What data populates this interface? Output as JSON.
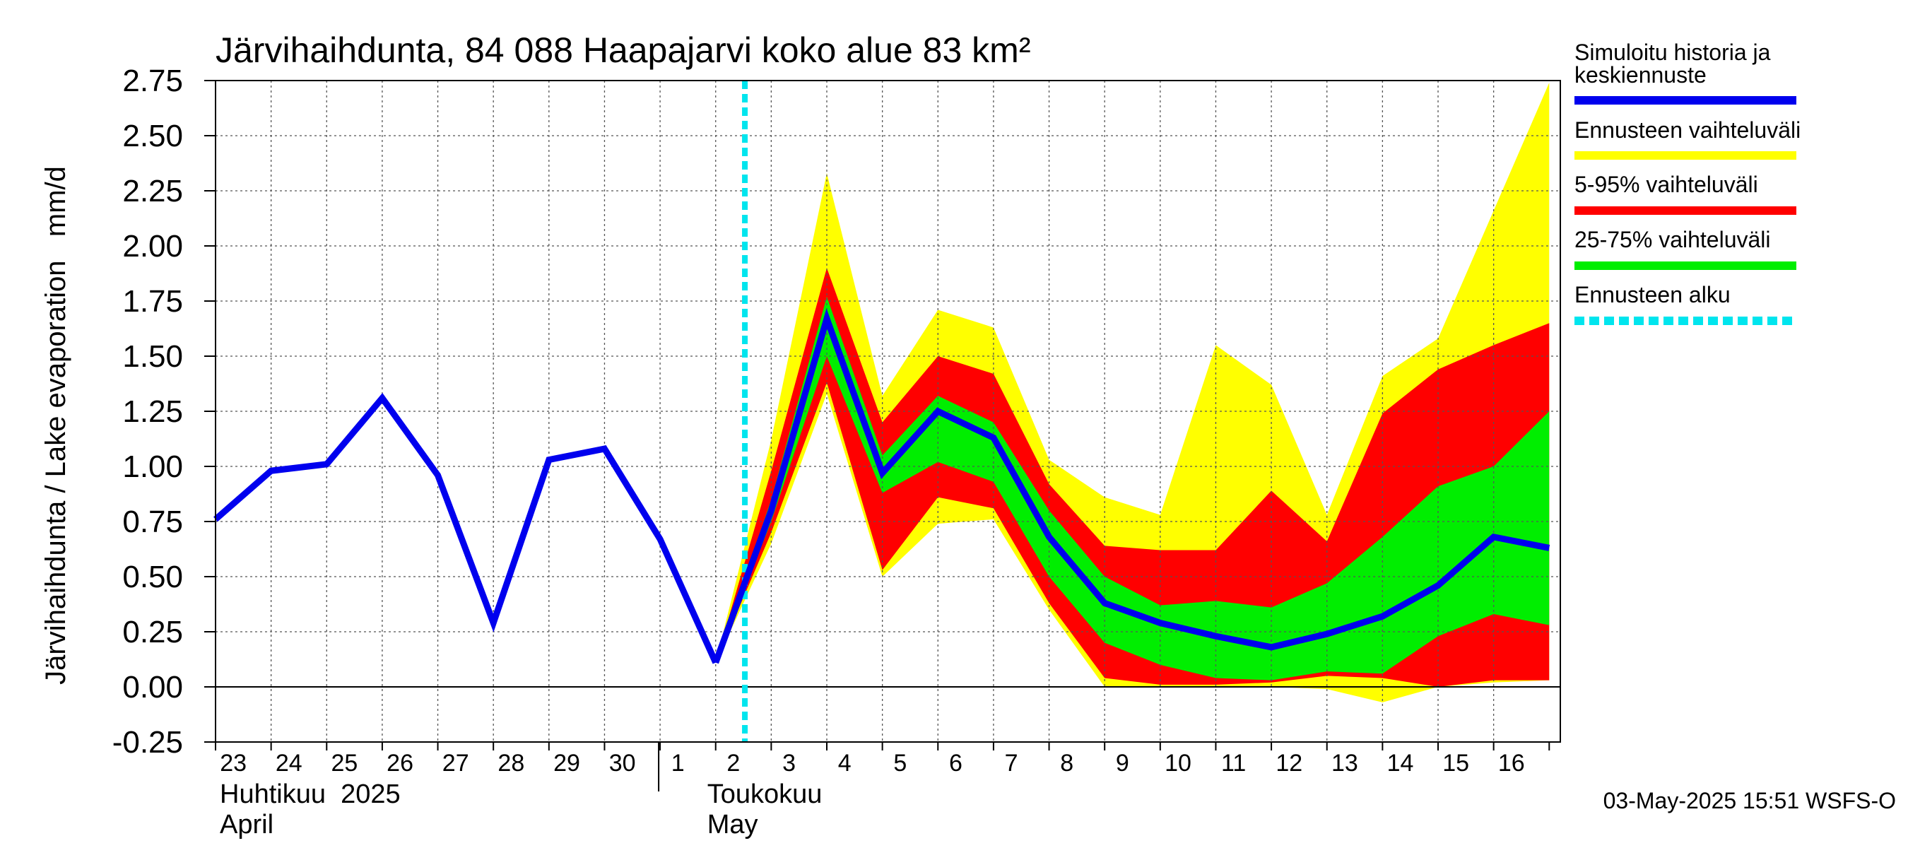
{
  "chart_data": {
    "type": "area",
    "title": "Järvihaihdunta, 84 088 Haapajarvi koko alue 83 km²",
    "ylabel": "Järvihaihdunta / Lake evaporation   mm/d",
    "ylim": [
      -0.25,
      2.75
    ],
    "yticks": [
      "-0.25",
      "0.00",
      "0.25",
      "0.50",
      "0.75",
      "1.00",
      "1.25",
      "1.50",
      "1.75",
      "2.00",
      "2.25",
      "2.50",
      "2.75"
    ],
    "x_day_labels": [
      "23",
      "24",
      "25",
      "26",
      "27",
      "28",
      "29",
      "30",
      "1",
      "2",
      "3",
      "4",
      "5",
      "6",
      "7",
      "8",
      "9",
      "10",
      "11",
      "12",
      "13",
      "14",
      "15",
      "16"
    ],
    "month_labels": [
      {
        "fi": "Huhtikuu  2025",
        "en": "April"
      },
      {
        "fi": "Toukokuu",
        "en": "May"
      }
    ],
    "forecast_start_day_index": 10,
    "history": {
      "days": [
        0,
        1,
        2,
        3,
        4,
        5,
        6,
        7,
        8,
        9
      ],
      "values": [
        0.76,
        0.98,
        1.01,
        1.31,
        0.96,
        0.29,
        1.03,
        1.08,
        0.67,
        0.11
      ]
    },
    "forecast_days": [
      9,
      10,
      11,
      12,
      13,
      14,
      15,
      16,
      17,
      18,
      19,
      20,
      21,
      22,
      23,
      24
    ],
    "bands": {
      "range_min": [
        0.11,
        0.65,
        1.33,
        0.5,
        0.74,
        0.76,
        0.35,
        0.0,
        0.0,
        0.0,
        0.0,
        -0.01,
        -0.07,
        0.0,
        0.02,
        0.03
      ],
      "p5": [
        0.11,
        0.7,
        1.38,
        0.53,
        0.86,
        0.81,
        0.38,
        0.04,
        0.01,
        0.01,
        0.02,
        0.05,
        0.04,
        0.0,
        0.03,
        0.03
      ],
      "p25": [
        0.11,
        0.75,
        1.5,
        0.88,
        1.02,
        0.93,
        0.5,
        0.2,
        0.1,
        0.04,
        0.03,
        0.07,
        0.06,
        0.23,
        0.33,
        0.28
      ],
      "median": [
        0.11,
        0.8,
        1.67,
        0.97,
        1.25,
        1.13,
        0.68,
        0.38,
        0.29,
        0.23,
        0.18,
        0.24,
        0.32,
        0.46,
        0.68,
        0.63
      ],
      "p75": [
        0.11,
        0.85,
        1.77,
        1.05,
        1.32,
        1.2,
        0.8,
        0.5,
        0.37,
        0.39,
        0.36,
        0.47,
        0.68,
        0.91,
        1.0,
        1.25
      ],
      "p95": [
        0.11,
        0.98,
        1.9,
        1.2,
        1.5,
        1.42,
        0.92,
        0.64,
        0.62,
        0.62,
        0.89,
        0.66,
        1.24,
        1.44,
        1.55,
        1.65
      ],
      "range_max": [
        0.11,
        1.12,
        2.33,
        1.32,
        1.71,
        1.63,
        1.03,
        0.86,
        0.78,
        1.55,
        1.37,
        0.78,
        1.41,
        1.58,
        2.16,
        2.74
      ]
    },
    "colors": {
      "history": "#0000ee",
      "range": "#ffff00",
      "p5_95": "#ff0000",
      "p25_75": "#00ee00",
      "forecast_start": "#00e5ee"
    },
    "legend": [
      {
        "label": "Simuloitu historia ja\nkeskiennuste",
        "color": "#0000ee",
        "style": "solid"
      },
      {
        "label": "Ennusteen vaihteluväli",
        "color": "#ffff00",
        "style": "solid"
      },
      {
        "label": "5-95% vaihteluväli",
        "color": "#ff0000",
        "style": "solid"
      },
      {
        "label": "25-75% vaihteluväli",
        "color": "#00ee00",
        "style": "solid"
      },
      {
        "label": "Ennusteen alku",
        "color": "#00e5ee",
        "style": "dashed"
      }
    ],
    "legend_position": "right",
    "grid": true
  },
  "timestamp": "03-May-2025 15:51 WSFS-O"
}
